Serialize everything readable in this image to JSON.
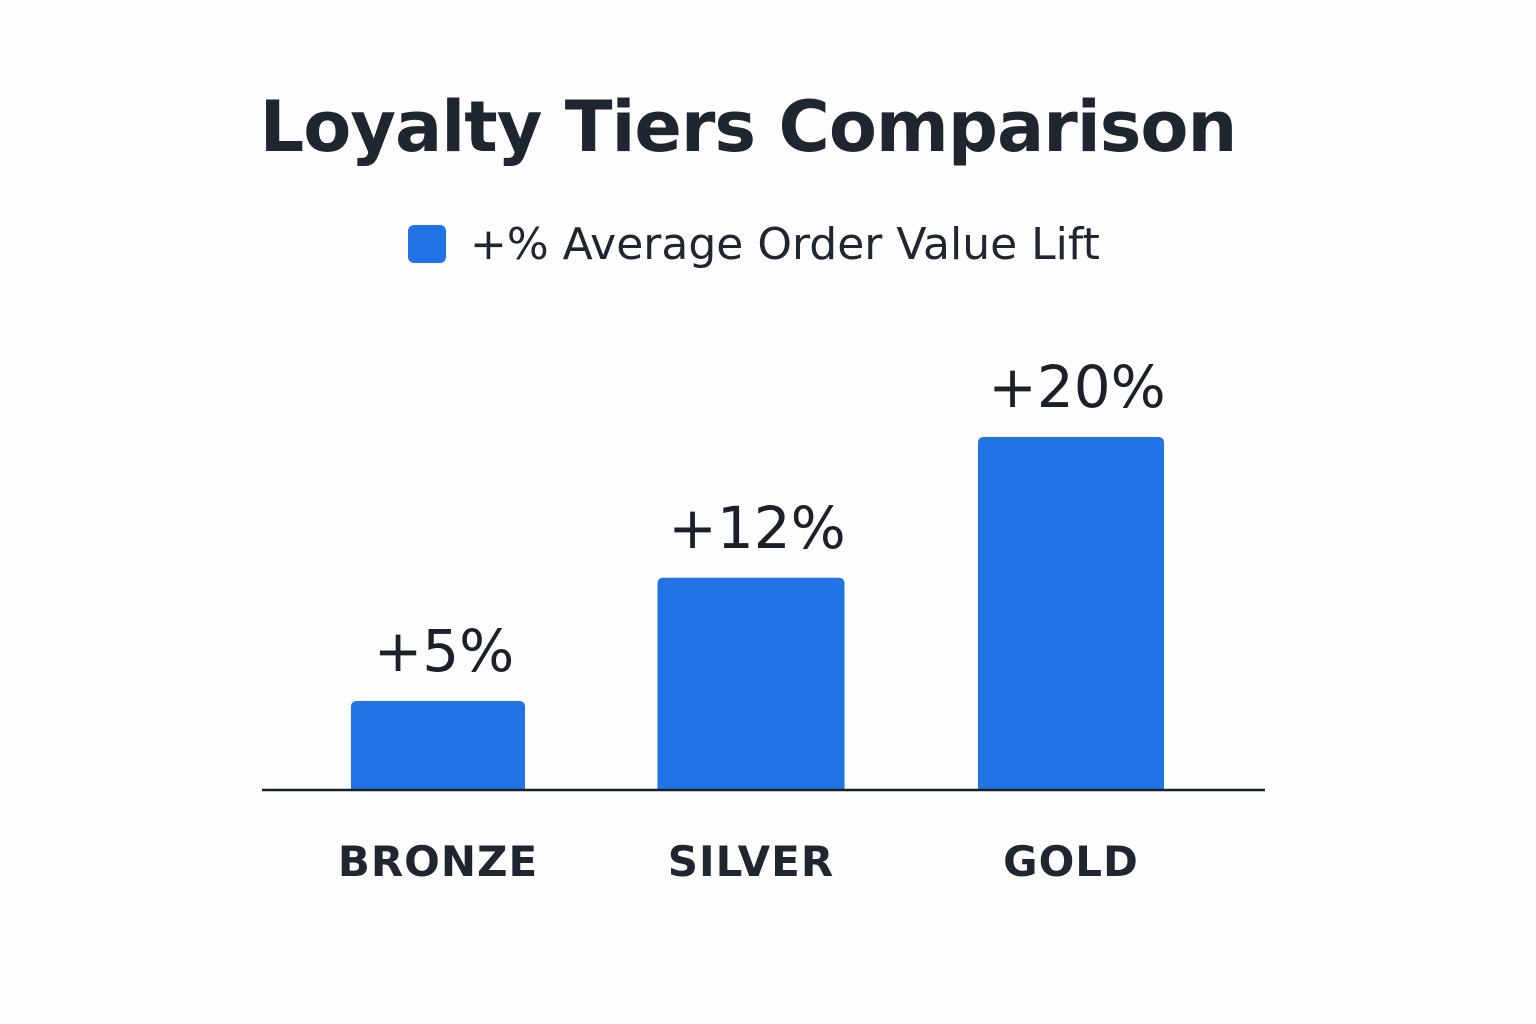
{
  "colors": {
    "bar": "#2273e6",
    "axis": "#1b1f26",
    "text": "#20262f"
  },
  "chart_data": {
    "type": "bar",
    "title": "Loyalty Tiers Comparison",
    "categories": [
      "BRONZE",
      "SILVER",
      "GOLD"
    ],
    "series": [
      {
        "name": "+% Average Order Value Lift",
        "values": [
          5,
          12,
          20
        ],
        "labels": [
          "+5%",
          "+12%",
          "+20%"
        ]
      }
    ],
    "xlabel": "",
    "ylabel": "",
    "ylim": [
      0,
      25
    ],
    "grid": false,
    "legend_position": "top-center"
  }
}
